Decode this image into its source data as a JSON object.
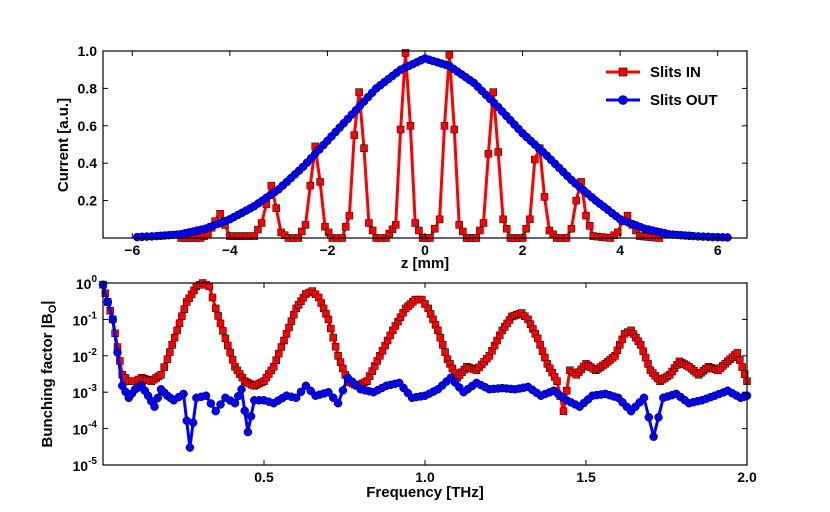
{
  "chart_data": [
    {
      "type": "line",
      "panel": "top",
      "xlabel": "z [mm]",
      "ylabel": "Current [a.u.]",
      "xlim": [
        -6.6,
        6.6
      ],
      "ylim": [
        0,
        1.0
      ],
      "xticks": [
        -6,
        -4,
        -2,
        0,
        2,
        4,
        6
      ],
      "xtick_labels": [
        "−6",
        "−4",
        "−2",
        "0",
        "2",
        "4",
        "6"
      ],
      "yticks": [
        0.2,
        0.4,
        0.6,
        0.8,
        1.0
      ],
      "ytick_labels": [
        "0.2",
        "0.4",
        "0.6",
        "0.8",
        "1.0"
      ],
      "legend_position": "top-right",
      "series": [
        {
          "name": "Slits IN",
          "color": "#ff0000",
          "marker": "square",
          "x": [
            -5.0,
            -4.6,
            -4.45,
            -4.3,
            -4.2,
            -4.1,
            -4.0,
            -3.5,
            -3.35,
            -3.25,
            -3.15,
            -3.05,
            -2.95,
            -2.8,
            -2.6,
            -2.45,
            -2.35,
            -2.25,
            -2.15,
            -2.05,
            -1.9,
            -1.7,
            -1.55,
            -1.45,
            -1.35,
            -1.25,
            -1.15,
            -1.0,
            -0.8,
            -0.6,
            -0.5,
            -0.4,
            -0.3,
            -0.2,
            -0.05,
            0.1,
            0.3,
            0.4,
            0.5,
            0.6,
            0.7,
            0.85,
            1.05,
            1.2,
            1.3,
            1.4,
            1.5,
            1.6,
            1.75,
            2.0,
            2.15,
            2.25,
            2.35,
            2.45,
            2.55,
            2.7,
            2.9,
            3.0,
            3.1,
            3.2,
            3.3,
            3.45,
            3.8,
            3.95,
            4.05,
            4.15,
            4.25,
            4.4,
            4.8
          ],
          "y": [
            0,
            0,
            0.02,
            0.09,
            0.13,
            0.07,
            0.01,
            0.01,
            0.08,
            0.18,
            0.28,
            0.16,
            0.03,
            0,
            0,
            0.07,
            0.28,
            0.49,
            0.3,
            0.06,
            0,
            0,
            0.12,
            0.55,
            0.78,
            0.48,
            0.08,
            0,
            0,
            0.07,
            0.58,
            0.99,
            0.6,
            0.08,
            0,
            0,
            0.1,
            0.6,
            0.98,
            0.58,
            0.07,
            0,
            0,
            0.08,
            0.45,
            0.78,
            0.46,
            0.1,
            0,
            0,
            0.1,
            0.42,
            0.48,
            0.22,
            0.04,
            0,
            0,
            0.05,
            0.2,
            0.3,
            0.12,
            0.01,
            0,
            0.03,
            0.09,
            0.12,
            0.07,
            0.01,
            0
          ]
        },
        {
          "name": "Slits OUT",
          "color": "#0000ff",
          "marker": "circle",
          "x": [
            -5.9,
            -5.5,
            -5.0,
            -4.5,
            -4.0,
            -3.5,
            -3.0,
            -2.5,
            -2.0,
            -1.5,
            -1.0,
            -0.5,
            0.0,
            0.5,
            1.0,
            1.5,
            2.0,
            2.5,
            3.0,
            3.5,
            4.0,
            4.5,
            5.0,
            5.5,
            5.9,
            6.2
          ],
          "y": [
            0.005,
            0.01,
            0.02,
            0.05,
            0.1,
            0.17,
            0.26,
            0.38,
            0.52,
            0.66,
            0.8,
            0.9,
            0.96,
            0.92,
            0.83,
            0.7,
            0.56,
            0.44,
            0.31,
            0.2,
            0.1,
            0.05,
            0.02,
            0.01,
            0.005,
            0.003
          ]
        }
      ]
    },
    {
      "type": "line",
      "panel": "bottom",
      "xlabel": "Frequency [THz]",
      "ylabel": "Bunching factor |B",
      "ylabel_sub": "O",
      "ylabel_end": "|",
      "xlim": [
        0,
        2.0
      ],
      "ylim_log10": [
        -5,
        0
      ],
      "xticks": [
        0.5,
        1.0,
        1.5,
        2.0
      ],
      "xtick_labels": [
        "0.5",
        "1.0",
        "1.5",
        "2.0"
      ],
      "ytick_base": "10",
      "ytick_exponents": [
        "-5",
        "-4",
        "-3",
        "-2",
        "-1",
        "0"
      ],
      "series": [
        {
          "name": "Slits IN",
          "color": "#ff0000",
          "marker": "square",
          "x": [
            0.0,
            0.03,
            0.06,
            0.08,
            0.1,
            0.12,
            0.15,
            0.18,
            0.2,
            0.23,
            0.26,
            0.29,
            0.31,
            0.33,
            0.35,
            0.38,
            0.41,
            0.44,
            0.47,
            0.5,
            0.53,
            0.57,
            0.6,
            0.63,
            0.65,
            0.67,
            0.7,
            0.73,
            0.76,
            0.79,
            0.82,
            0.86,
            0.9,
            0.94,
            0.97,
            0.99,
            1.01,
            1.04,
            1.07,
            1.1,
            1.13,
            1.16,
            1.2,
            1.24,
            1.27,
            1.3,
            1.32,
            1.35,
            1.38,
            1.41,
            1.43,
            1.45,
            1.47,
            1.5,
            1.53,
            1.56,
            1.59,
            1.62,
            1.64,
            1.67,
            1.7,
            1.73,
            1.76,
            1.79,
            1.82,
            1.85,
            1.88,
            1.91,
            1.94,
            1.97,
            2.0
          ],
          "y": [
            0.9,
            0.1,
            0.003,
            0.002,
            0.002,
            0.0025,
            0.002,
            0.003,
            0.008,
            0.05,
            0.3,
            0.8,
            1.0,
            0.8,
            0.2,
            0.03,
            0.005,
            0.002,
            0.0015,
            0.002,
            0.005,
            0.04,
            0.2,
            0.5,
            0.6,
            0.4,
            0.1,
            0.01,
            0.002,
            0.0015,
            0.002,
            0.01,
            0.05,
            0.2,
            0.35,
            0.35,
            0.2,
            0.05,
            0.008,
            0.0025,
            0.005,
            0.004,
            0.01,
            0.05,
            0.12,
            0.15,
            0.1,
            0.03,
            0.006,
            0.002,
            0.0003,
            0.004,
            0.003,
            0.006,
            0.004,
            0.006,
            0.01,
            0.04,
            0.05,
            0.02,
            0.004,
            0.002,
            0.003,
            0.007,
            0.005,
            0.003,
            0.005,
            0.004,
            0.007,
            0.012,
            0.002
          ]
        },
        {
          "name": "Slits OUT",
          "color": "#0000ff",
          "marker": "circle",
          "x": [
            0.0,
            0.03,
            0.06,
            0.08,
            0.1,
            0.12,
            0.14,
            0.16,
            0.18,
            0.2,
            0.22,
            0.25,
            0.27,
            0.29,
            0.32,
            0.35,
            0.38,
            0.41,
            0.43,
            0.45,
            0.47,
            0.5,
            0.53,
            0.57,
            0.6,
            0.63,
            0.66,
            0.7,
            0.73,
            0.76,
            0.8,
            0.84,
            0.88,
            0.92,
            0.96,
            1.0,
            1.04,
            1.08,
            1.12,
            1.16,
            1.2,
            1.24,
            1.28,
            1.32,
            1.36,
            1.4,
            1.44,
            1.48,
            1.52,
            1.56,
            1.6,
            1.64,
            1.68,
            1.71,
            1.74,
            1.78,
            1.82,
            1.86,
            1.9,
            1.94,
            1.98,
            2.0
          ],
          "y": [
            0.9,
            0.1,
            0.0015,
            0.0007,
            0.0012,
            0.0015,
            0.0008,
            0.0004,
            0.0012,
            0.0008,
            0.0006,
            0.0009,
            3e-05,
            0.0007,
            0.0008,
            0.0003,
            0.0007,
            0.0005,
            0.0012,
            8e-05,
            0.0006,
            0.0006,
            0.0005,
            0.0008,
            0.0007,
            0.0015,
            0.0008,
            0.001,
            0.0005,
            0.0025,
            0.0012,
            0.001,
            0.0015,
            0.0018,
            0.0007,
            0.0008,
            0.0012,
            0.0025,
            0.001,
            0.0018,
            0.0012,
            0.0013,
            0.0012,
            0.0014,
            0.0008,
            0.0011,
            0.0006,
            0.0004,
            0.0008,
            0.0009,
            0.0007,
            0.0003,
            0.0007,
            6e-05,
            0.0007,
            0.0009,
            0.0005,
            0.0006,
            0.0008,
            0.0011,
            0.0007,
            0.0008
          ]
        }
      ]
    }
  ]
}
